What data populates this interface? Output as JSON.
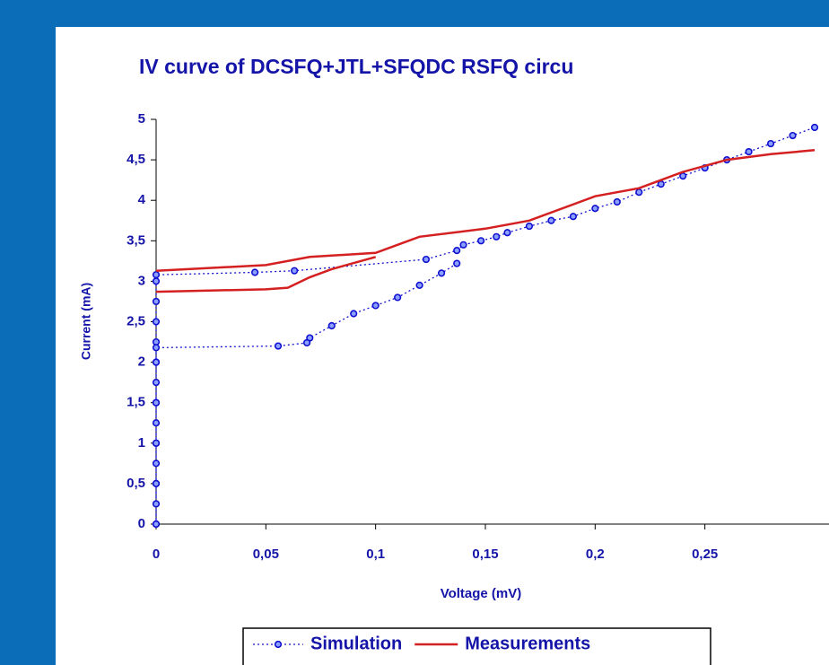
{
  "chart_data": {
    "type": "scatter",
    "title": "IV curve of DCSFQ+JTL+SFQDC RSFQ circu",
    "x_label": "Voltage (mV)",
    "y_label": "Current (mA)",
    "xlim": [
      0,
      0.3
    ],
    "ylim": [
      0,
      5
    ],
    "xticks": [
      0,
      {
        "value": 0.05,
        "label": "0,05"
      },
      {
        "value": 0.1,
        "label": "0,1"
      },
      {
        "value": 0.15,
        "label": "0,15"
      },
      {
        "value": 0.2,
        "label": "0,2"
      },
      {
        "value": 0.25,
        "label": "0,25"
      }
    ],
    "yticks": [
      0,
      {
        "value": 0.5,
        "label": "0,5"
      },
      1,
      {
        "value": 1.5,
        "label": "1,5"
      },
      2,
      {
        "value": 2.5,
        "label": "2,5"
      },
      3,
      {
        "value": 3.5,
        "label": "3,5"
      },
      4,
      {
        "value": 4.5,
        "label": "4,5"
      },
      5
    ],
    "grid": false,
    "legend": "bottom",
    "series": [
      {
        "name": "Simulation",
        "color": "#1010d0",
        "style": "dotted-markers",
        "x": [
          0,
          0,
          0,
          0,
          0,
          0,
          0,
          0,
          0,
          0,
          0,
          0,
          0,
          0,
          0.045,
          0.063,
          0.123,
          0.137,
          0.14,
          0.148,
          0.155,
          0.16,
          0.17,
          0.18,
          0.19,
          0.2,
          0.21,
          0.22,
          0.23,
          0.24,
          0.25,
          0.26,
          0.27,
          0.28,
          0.29,
          0.3,
          null,
          0.137,
          0.13,
          0.12,
          0.11,
          0.1,
          0.09,
          0.08,
          0.07,
          0.0687,
          0.0556,
          0,
          0,
          0,
          0,
          0,
          0
        ],
        "values": [
          0,
          0.25,
          0.5,
          0.75,
          1,
          1.25,
          1.5,
          1.75,
          2,
          2.25,
          2.5,
          2.75,
          3,
          3.08,
          3.11,
          3.13,
          3.27,
          3.38,
          3.45,
          3.5,
          3.55,
          3.6,
          3.68,
          3.75,
          3.8,
          3.9,
          3.98,
          4.1,
          4.2,
          4.3,
          4.4,
          4.5,
          4.6,
          4.7,
          4.8,
          4.9,
          null,
          3.22,
          3.1,
          2.95,
          2.8,
          2.7,
          2.6,
          2.45,
          2.3,
          2.24,
          2.2,
          2.18,
          2,
          1.5,
          1,
          0.5,
          0
        ]
      },
      {
        "name": "Measurements",
        "color": "#d42020",
        "style": "line",
        "x": [
          0,
          0.05,
          0.07,
          0.1,
          0.11,
          0.12,
          0.15,
          0.17,
          0.2,
          0.22,
          0.24,
          0.26,
          0.28,
          0.3,
          null,
          0,
          0.05,
          0.06,
          0.07,
          0.08,
          0.1
        ],
        "values": [
          3.13,
          3.2,
          3.3,
          3.35,
          3.45,
          3.55,
          3.65,
          3.75,
          4.05,
          4.15,
          4.35,
          4.5,
          4.57,
          4.62,
          null,
          2.87,
          2.9,
          2.92,
          3.05,
          3.15,
          3.3
        ]
      }
    ]
  }
}
